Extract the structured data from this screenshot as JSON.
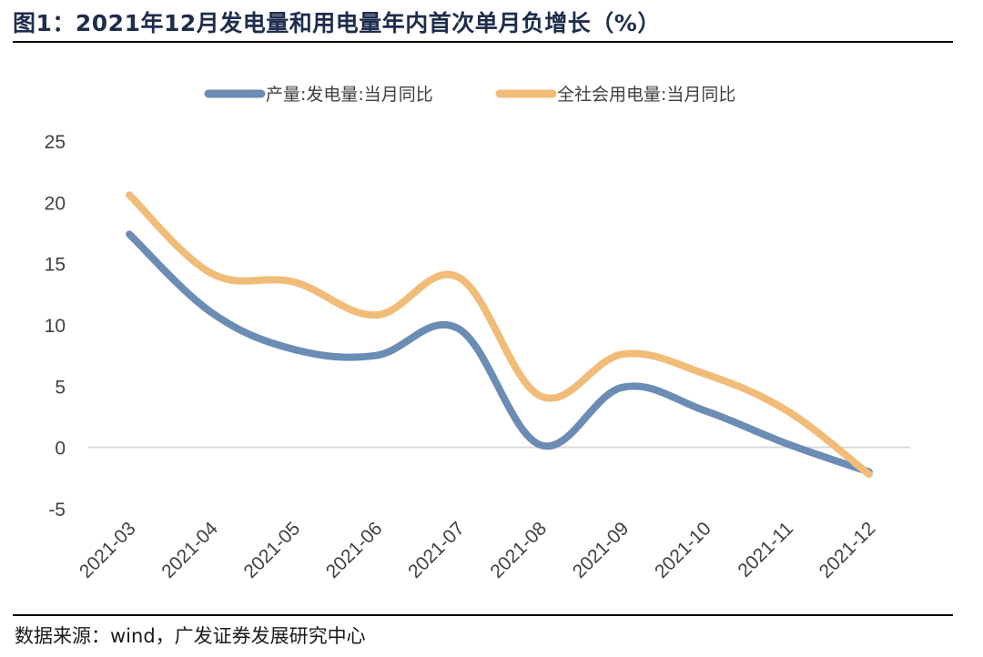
{
  "title": "图1：2021年12月发电量和用电量年内首次单月负增长（%）",
  "source": "数据来源：wind，广发证券发展研究中心",
  "colors": {
    "series1": "#6b8cb4",
    "series2": "#f1bc78",
    "axis": "#d9d9d9",
    "tick": "#404040"
  },
  "chart_data": {
    "type": "line",
    "title": "",
    "xlabel": "",
    "ylabel": "",
    "ylim": [
      -5,
      25
    ],
    "yticks": [
      25,
      20,
      15,
      10,
      5,
      0,
      -5
    ],
    "categories": [
      "2021-03",
      "2021-04",
      "2021-05",
      "2021-06",
      "2021-07",
      "2021-08",
      "2021-09",
      "2021-10",
      "2021-11",
      "2021-12"
    ],
    "legend_position": "top-center",
    "series": [
      {
        "name": "产量:发电量:当月同比",
        "values": [
          17.4,
          11.0,
          8.0,
          7.5,
          9.7,
          0.2,
          4.9,
          3.0,
          0.3,
          -2.0
        ]
      },
      {
        "name": "全社会用电量:当月同比",
        "values": [
          20.6,
          14.2,
          13.5,
          10.8,
          13.9,
          4.2,
          7.6,
          6.0,
          3.0,
          -2.2
        ]
      }
    ]
  }
}
